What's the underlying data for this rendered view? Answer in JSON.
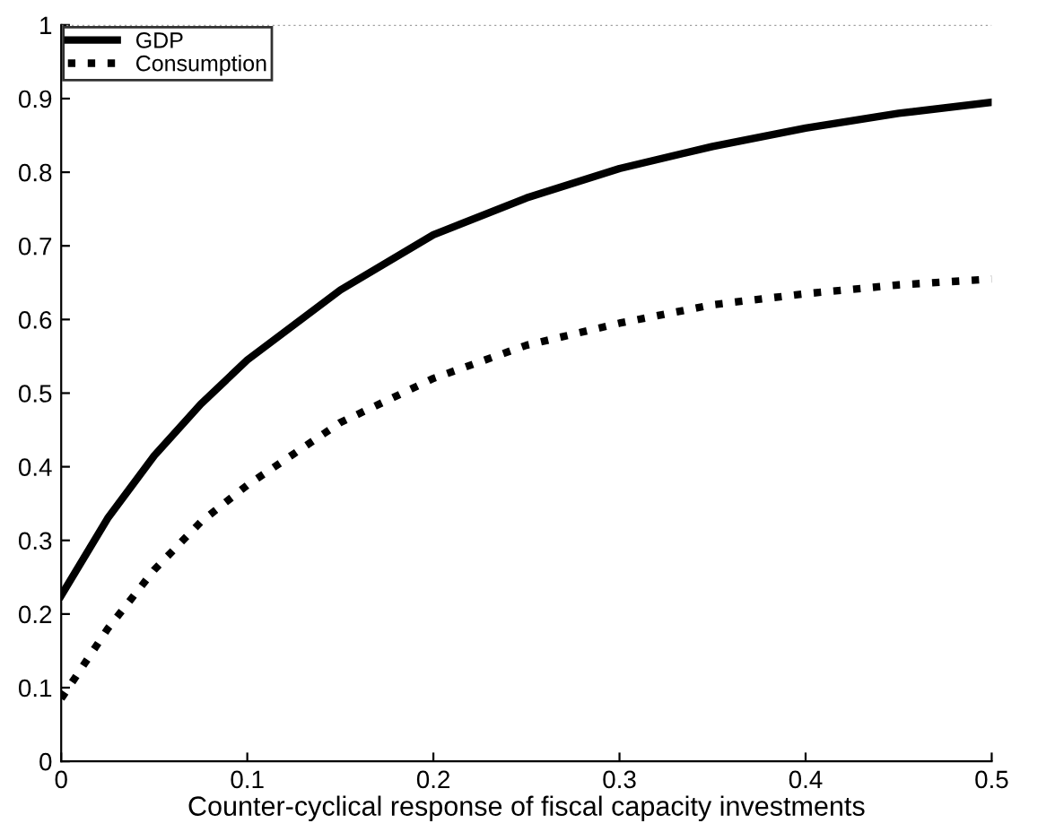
{
  "chart_data": {
    "type": "line",
    "xlabel": "Counter-cyclical response of fiscal capacity investments",
    "x": [
      0,
      0.025,
      0.05,
      0.075,
      0.1,
      0.15,
      0.2,
      0.25,
      0.3,
      0.35,
      0.4,
      0.45,
      0.5
    ],
    "series": [
      {
        "name": "GDP",
        "color": "#000000",
        "line_style": "solid",
        "values": [
          0.225,
          0.33,
          0.415,
          0.485,
          0.545,
          0.64,
          0.715,
          0.765,
          0.805,
          0.835,
          0.86,
          0.88,
          0.895
        ]
      },
      {
        "name": "Consumption",
        "color": "#000000",
        "line_style": "dotted",
        "values": [
          0.085,
          0.18,
          0.26,
          0.325,
          0.375,
          0.46,
          0.52,
          0.565,
          0.595,
          0.62,
          0.635,
          0.647,
          0.655
        ]
      }
    ],
    "xlim": [
      0,
      0.5
    ],
    "xticks": [
      0,
      0.1,
      0.2,
      0.3,
      0.4,
      0.5
    ],
    "ylim": [
      0,
      1
    ],
    "yticks": [
      0,
      0.1,
      0.2,
      0.3,
      0.4,
      0.5,
      0.6,
      0.7,
      0.8,
      0.9,
      1
    ],
    "ref_lines": [
      {
        "axis": "y",
        "value": 1,
        "color": "#a0a0a0",
        "line_style": "dotted"
      }
    ],
    "legend": "top left",
    "grid": false,
    "marker": "none"
  }
}
